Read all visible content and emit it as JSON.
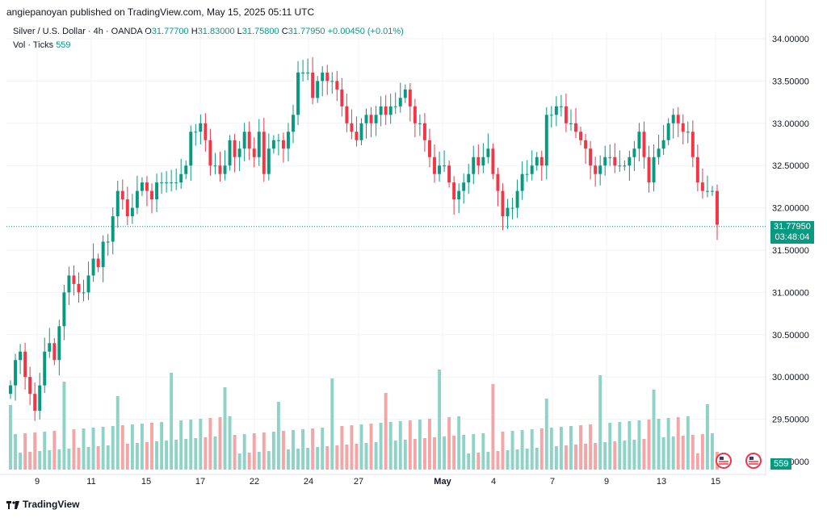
{
  "header": {
    "published": "angiepanoyan published on TradingView.com, May 15, 2025 05:11 UTC"
  },
  "legend": {
    "symbol": "Silver / U.S. Dollar · 4h · OANDA",
    "o_label": "O",
    "o": "31.77700",
    "h_label": "H",
    "h": "31.83000",
    "l_label": "L",
    "l": "31.75800",
    "c_label": "C",
    "c": "31.77950",
    "change": "+0.00450 (+0.01%)",
    "vol_label": "Vol · Ticks",
    "vol": "559"
  },
  "last_price_tag": {
    "price": "31.77950",
    "countdown": "03:48:04"
  },
  "volume_tag": "559",
  "footer": {
    "brand": "TradingView"
  },
  "colors": {
    "up": "#089981",
    "down": "#f23645",
    "vol_up": "#8fd3c7",
    "vol_down": "#f4a5a5"
  },
  "chart_data": {
    "type": "candlestick",
    "title": "Silver / U.S. Dollar · 4h · OANDA",
    "yaxis_ticks": [
      "34.00000",
      "33.50000",
      "33.00000",
      "32.50000",
      "32.00000",
      "31.50000",
      "31.00000",
      "30.50000",
      "30.00000",
      "29.50000",
      "29.00000"
    ],
    "xaxis_ticks": [
      "9",
      "11",
      "15",
      "17",
      "22",
      "24",
      "27",
      "May",
      "4",
      "7",
      "9",
      "13",
      "15"
    ],
    "ylim": [
      29.0,
      34.0
    ],
    "grid": true,
    "last_close": 31.7795,
    "candle_closes": [
      29.9,
      30.2,
      30.3,
      30.0,
      29.8,
      29.6,
      29.9,
      30.3,
      30.4,
      30.2,
      30.6,
      31.0,
      31.2,
      31.1,
      31.0,
      31.0,
      31.2,
      31.4,
      31.3,
      31.6,
      31.6,
      31.9,
      32.2,
      32.1,
      31.9,
      32.0,
      32.2,
      32.3,
      32.2,
      32.1,
      32.3,
      32.3,
      32.3,
      32.3,
      32.3,
      32.4,
      32.5,
      32.9,
      32.9,
      33.0,
      32.8,
      32.5,
      32.5,
      32.4,
      32.5,
      32.8,
      32.6,
      32.7,
      32.9,
      32.7,
      32.6,
      32.9,
      32.4,
      32.7,
      32.8,
      32.8,
      32.7,
      32.9,
      33.1,
      33.6,
      33.6,
      33.6,
      33.3,
      33.5,
      33.6,
      33.5,
      33.5,
      33.4,
      33.2,
      33.0,
      32.9,
      32.8,
      33.0,
      33.1,
      33.0,
      33.1,
      33.2,
      33.1,
      33.2,
      33.2,
      33.3,
      33.4,
      33.2,
      33.0,
      33.0,
      32.8,
      32.6,
      32.4,
      32.5,
      32.5,
      32.3,
      32.1,
      32.2,
      32.3,
      32.4,
      32.6,
      32.5,
      32.6,
      32.7,
      32.4,
      32.2,
      31.9,
      32.0,
      32.0,
      32.2,
      32.4,
      32.4,
      32.5,
      32.6,
      32.5,
      33.1,
      33.1,
      33.2,
      33.2,
      33.0,
      33.0,
      32.9,
      32.8,
      32.7,
      32.5,
      32.4,
      32.5,
      32.6,
      32.6,
      32.5,
      32.5,
      32.5,
      32.6,
      32.7,
      32.9,
      32.6,
      32.3,
      32.6,
      32.7,
      32.8,
      33.0,
      33.1,
      33.0,
      32.9,
      32.9,
      32.6,
      32.3,
      32.2,
      32.2,
      32.2,
      31.8
    ]
  }
}
